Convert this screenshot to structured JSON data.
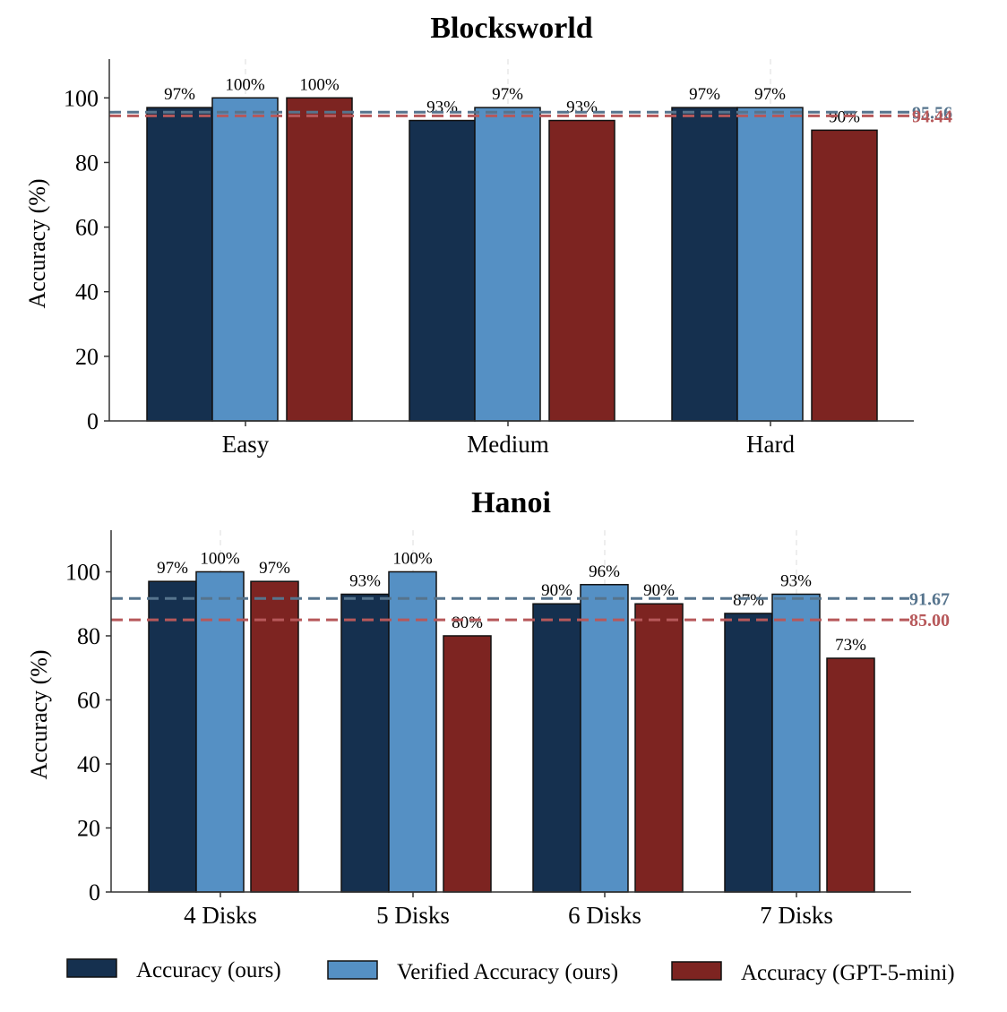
{
  "colors": {
    "accuracy_ours": "#15304f",
    "verified_accuracy_ours": "#5590c4",
    "accuracy_gpt5mini": "#7d2421",
    "mean_ours": "#56748d",
    "mean_gpt5mini": "#b7585a"
  },
  "legend": {
    "items": [
      {
        "label": "Accuracy (ours)",
        "color": "#15304f"
      },
      {
        "label": "Verified Accuracy (ours)",
        "color": "#5590c4"
      },
      {
        "label": "Accuracy (GPT-5-mini)",
        "color": "#7d2421"
      }
    ]
  },
  "chart_data": [
    {
      "type": "bar",
      "title": "Blocksworld",
      "xlabel": "",
      "ylabel": "Accuracy (%)",
      "ylim": [
        0,
        112
      ],
      "yticks": [
        "0",
        "20",
        "40",
        "60",
        "80",
        "100"
      ],
      "categories": [
        "Easy",
        "Medium",
        "Hard"
      ],
      "series": [
        {
          "name": "Accuracy (ours)",
          "values": [
            97,
            93,
            97
          ],
          "labels": [
            "97%",
            "93%",
            "97%"
          ]
        },
        {
          "name": "Verified Accuracy (ours)",
          "values": [
            100,
            97,
            97
          ],
          "labels": [
            "100%",
            "97%",
            "97%"
          ]
        },
        {
          "name": "Accuracy (GPT-5-mini)",
          "values": [
            100,
            93,
            90
          ],
          "labels": [
            "100%",
            "93%",
            "90%"
          ]
        }
      ],
      "mean_lines": [
        {
          "name": "ours",
          "value": 95.56,
          "label": "95.56"
        },
        {
          "name": "GPT-5-mini",
          "value": 94.44,
          "label": "94.44"
        }
      ]
    },
    {
      "type": "bar",
      "title": "Hanoi",
      "xlabel": "",
      "ylabel": "Accuracy (%)",
      "ylim": [
        0,
        113
      ],
      "yticks": [
        "0",
        "20",
        "40",
        "60",
        "80",
        "100"
      ],
      "categories": [
        "4 Disks",
        "5 Disks",
        "6 Disks",
        "7 Disks"
      ],
      "series": [
        {
          "name": "Accuracy (ours)",
          "values": [
            97,
            93,
            90,
            87
          ],
          "labels": [
            "97%",
            "93%",
            "90%",
            "87%"
          ]
        },
        {
          "name": "Verified Accuracy (ours)",
          "values": [
            100,
            100,
            96,
            93
          ],
          "labels": [
            "100%",
            "100%",
            "96%",
            "93%"
          ]
        },
        {
          "name": "Accuracy (GPT-5-mini)",
          "values": [
            97,
            80,
            90,
            73
          ],
          "labels": [
            "97%",
            "80%",
            "90%",
            "73%"
          ]
        }
      ],
      "mean_lines": [
        {
          "name": "ours",
          "value": 91.67,
          "label": "91.67"
        },
        {
          "name": "GPT-5-mini",
          "value": 85.0,
          "label": "85.00"
        }
      ]
    }
  ]
}
